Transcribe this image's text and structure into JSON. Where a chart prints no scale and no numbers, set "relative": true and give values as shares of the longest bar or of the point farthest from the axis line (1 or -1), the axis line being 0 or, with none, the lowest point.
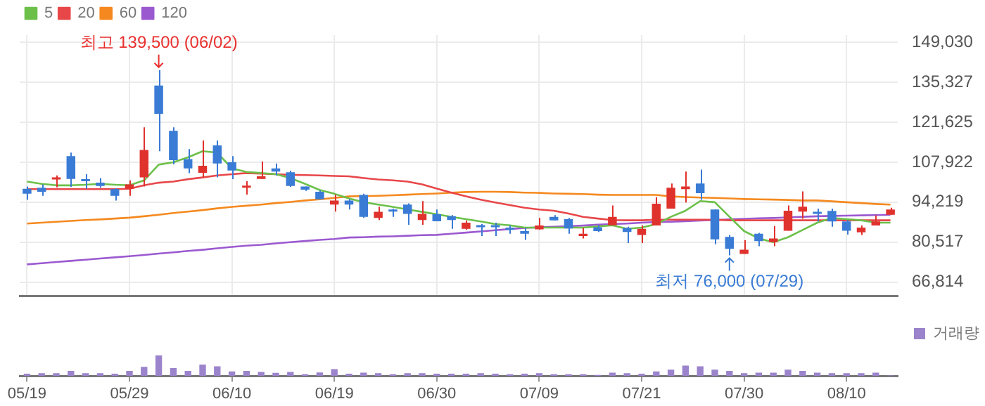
{
  "chart_data": [
    {
      "type": "candlestick",
      "categories": [
        null,
        null,
        null,
        null,
        null,
        null,
        null,
        null,
        null,
        null,
        null,
        null,
        null,
        null,
        null,
        null,
        null,
        null,
        null,
        null,
        null,
        null,
        null,
        null,
        null,
        null,
        null,
        null,
        null,
        null,
        null,
        null,
        null,
        null,
        null,
        null,
        null,
        null,
        null,
        null,
        null,
        null,
        null,
        null,
        null,
        null,
        null,
        null,
        null,
        null,
        null,
        null,
        null,
        null,
        null,
        null,
        null,
        null,
        null,
        null
      ],
      "ohlc": [
        [
          98800,
          99600,
          95000,
          97100
        ],
        [
          99200,
          100300,
          96400,
          97800
        ],
        [
          102000,
          103400,
          99300,
          102700
        ],
        [
          110000,
          111200,
          99500,
          102200
        ],
        [
          102100,
          103800,
          98800,
          101400
        ],
        [
          100900,
          102500,
          99200,
          99800
        ],
        [
          98700,
          99000,
          94800,
          96400
        ],
        [
          98800,
          101700,
          96400,
          100300
        ],
        [
          102700,
          119900,
          99600,
          112100
        ],
        [
          134200,
          139500,
          111700,
          124500
        ],
        [
          118700,
          119900,
          107200,
          108600
        ],
        [
          109000,
          112400,
          104200,
          105800
        ],
        [
          104300,
          115400,
          102700,
          106700
        ],
        [
          113700,
          115400,
          102700,
          107500
        ],
        [
          107900,
          110000,
          102100,
          105100
        ],
        [
          99200,
          101400,
          96800,
          99600
        ],
        [
          102200,
          108200,
          102200,
          103100
        ],
        [
          105800,
          107500,
          103400,
          104700
        ],
        [
          104500,
          105000,
          99500,
          99800
        ],
        [
          99600,
          99600,
          98100,
          98500
        ],
        [
          97800,
          98200,
          95200,
          95200
        ],
        [
          93400,
          96800,
          91000,
          94800
        ],
        [
          94800,
          95300,
          91700,
          93400
        ],
        [
          96700,
          97100,
          88800,
          89200
        ],
        [
          88800,
          92700,
          88100,
          90900
        ],
        [
          91400,
          92000,
          89200,
          91000
        ],
        [
          93400,
          93800,
          86500,
          90200
        ],
        [
          88100,
          94600,
          86500,
          90200
        ],
        [
          90100,
          91700,
          87700,
          87700
        ],
        [
          89400,
          89800,
          85100,
          88100
        ],
        [
          85100,
          87900,
          84800,
          87200
        ],
        [
          86300,
          86700,
          82600,
          85600
        ],
        [
          86300,
          87200,
          82600,
          85600
        ],
        [
          85400,
          86200,
          83400,
          84800
        ],
        [
          84300,
          85400,
          81300,
          83400
        ],
        [
          84900,
          88800,
          84800,
          86200
        ],
        [
          89200,
          89800,
          87900,
          88000
        ],
        [
          88400,
          88800,
          83400,
          85200
        ],
        [
          82600,
          85400,
          81800,
          83400
        ],
        [
          85600,
          86200,
          84000,
          84300
        ],
        [
          86300,
          93100,
          86300,
          89200
        ],
        [
          85400,
          85800,
          80200,
          84000
        ],
        [
          83000,
          86200,
          80200,
          85100
        ],
        [
          86200,
          95900,
          86200,
          93700
        ],
        [
          92000,
          100600,
          92000,
          99200
        ],
        [
          98700,
          104700,
          94100,
          99600
        ],
        [
          100600,
          105400,
          95000,
          97300
        ],
        [
          91700,
          91700,
          79800,
          81500
        ],
        [
          82300,
          83000,
          76000,
          78200
        ],
        [
          76500,
          81200,
          76500,
          77900
        ],
        [
          83400,
          83700,
          79100,
          80900
        ],
        [
          80500,
          86000,
          79100,
          81800
        ],
        [
          84400,
          93100,
          84400,
          91300
        ],
        [
          91000,
          97900,
          88500,
          92700
        ],
        [
          90600,
          92000,
          87600,
          90200
        ],
        [
          91200,
          92000,
          85800,
          87600
        ],
        [
          87600,
          88100,
          83100,
          84400
        ],
        [
          83900,
          86200,
          83000,
          85500
        ],
        [
          86200,
          89700,
          86200,
          87600
        ],
        [
          89900,
          92300,
          89900,
          91700
        ]
      ],
      "colors": [
        "#3a7bd5",
        "#3a7bd5",
        "#e0322d",
        "#3a7bd5",
        "#3a7bd5",
        "#3a7bd5",
        "#3a7bd5",
        "#e0322d",
        "#e0322d",
        "#3a7bd5",
        "#3a7bd5",
        "#3a7bd5",
        "#e0322d",
        "#3a7bd5",
        "#3a7bd5",
        "#e0322d",
        "#e0322d",
        "#3a7bd5",
        "#3a7bd5",
        "#3a7bd5",
        "#3a7bd5",
        "#e0322d",
        "#3a7bd5",
        "#3a7bd5",
        "#e0322d",
        "#3a7bd5",
        "#3a7bd5",
        "#e0322d",
        "#3a7bd5",
        "#3a7bd5",
        "#e0322d",
        "#3a7bd5",
        "#3a7bd5",
        "#3a7bd5",
        "#3a7bd5",
        "#e0322d",
        "#3a7bd5",
        "#3a7bd5",
        "#e0322d",
        "#3a7bd5",
        "#e0322d",
        "#3a7bd5",
        "#e0322d",
        "#e0322d",
        "#e0322d",
        "#e0322d",
        "#3a7bd5",
        "#3a7bd5",
        "#3a7bd5",
        "#e0322d",
        "#3a7bd5",
        "#e0322d",
        "#e0322d",
        "#e0322d",
        "#3a7bd5",
        "#3a7bd5",
        "#3a7bd5",
        "#e0322d",
        "#e0322d",
        "#e0322d"
      ],
      "series": [
        {
          "name": "5",
          "type": "line",
          "color": "#6cc04a",
          "values": [
            101300,
            100500,
            100000,
            100000,
            100200,
            100500,
            100200,
            100000,
            101700,
            107100,
            107900,
            109600,
            111700,
            111200,
            105800,
            104600,
            104200,
            103800,
            102500,
            100500,
            98400,
            97100,
            95500,
            94200,
            93400,
            92600,
            91700,
            90900,
            90100,
            89200,
            88400,
            87600,
            86700,
            86300,
            85500,
            85500,
            85500,
            85500,
            85500,
            85900,
            86300,
            85100,
            85500,
            86700,
            89200,
            91300,
            94600,
            94200,
            89200,
            84300,
            81800,
            80500,
            82200,
            84700,
            87200,
            88800,
            88400,
            88000,
            87200,
            87200
          ]
        },
        {
          "name": "20",
          "type": "line",
          "color": "#e8474a",
          "values": [
            98700,
            98700,
            98700,
            98700,
            98700,
            98700,
            98700,
            98800,
            100000,
            100900,
            101300,
            102100,
            102700,
            103400,
            103800,
            104200,
            104000,
            103800,
            103600,
            103500,
            103400,
            103200,
            103100,
            102500,
            102000,
            101700,
            101300,
            100300,
            98900,
            97500,
            96200,
            95100,
            94100,
            93200,
            92300,
            91700,
            91300,
            90300,
            89200,
            88600,
            88100,
            88000,
            88000,
            88200,
            88200,
            88200,
            88200,
            88200,
            88000,
            88000,
            88000,
            88000,
            88000,
            88000,
            88000,
            88000,
            88000,
            88000,
            88000,
            88000
          ]
        },
        {
          "name": "60",
          "type": "line",
          "color": "#f5891f",
          "values": [
            86900,
            87200,
            87500,
            87800,
            88100,
            88300,
            88600,
            88900,
            89400,
            89900,
            90500,
            91000,
            91500,
            92100,
            92600,
            93000,
            93400,
            93900,
            94300,
            94800,
            95200,
            95700,
            96200,
            96300,
            96400,
            96600,
            96800,
            97000,
            97200,
            97500,
            97700,
            97800,
            97800,
            97700,
            97500,
            97400,
            97200,
            97100,
            97000,
            96800,
            96700,
            96700,
            96700,
            96700,
            96200,
            96000,
            95800,
            95700,
            95500,
            95300,
            95200,
            95100,
            95000,
            94800,
            94800,
            94500,
            94200,
            93900,
            93600,
            93400
          ]
        },
        {
          "name": "120",
          "type": "line",
          "color": "#9b59d0",
          "values": [
            72900,
            73300,
            73700,
            74100,
            74500,
            74900,
            75300,
            75700,
            76100,
            76600,
            77000,
            77500,
            77900,
            78400,
            78900,
            79300,
            79600,
            80100,
            80500,
            80900,
            81300,
            81600,
            82100,
            82200,
            82400,
            82500,
            82700,
            82900,
            83000,
            83400,
            83800,
            84200,
            84600,
            85000,
            85400,
            85600,
            85800,
            86000,
            86200,
            86500,
            86700,
            86900,
            87200,
            87400,
            87500,
            87700,
            87900,
            88100,
            88300,
            88500,
            88700,
            88800,
            89000,
            89200,
            89400,
            89500,
            89600,
            89700,
            89800,
            89900
          ]
        }
      ],
      "ylim": [
        62000,
        151500
      ],
      "yticks": [
        {
          "value": 66814,
          "label": "66,814"
        },
        {
          "value": 80517,
          "label": "80,517"
        },
        {
          "value": 94219,
          "label": "94,219"
        },
        {
          "value": 107922,
          "label": "107,922"
        },
        {
          "value": 121625,
          "label": "121,625"
        },
        {
          "value": 135327,
          "label": "135,327"
        },
        {
          "value": 149030,
          "label": "149,030"
        }
      ],
      "grid": true,
      "legend": "top left",
      "tick_labels": "y",
      "annotations": [
        {
          "text": "최고 139,500 (06/02)",
          "y": 139500
        },
        {
          "text": "최저 76,000 (07/29)",
          "y": 76000
        }
      ]
    },
    {
      "type": "bar",
      "relative": true,
      "categories": [
        "05/19",
        null,
        null,
        null,
        null,
        null,
        null,
        "05/29",
        null,
        null,
        null,
        null,
        null,
        null,
        "06/10",
        null,
        null,
        null,
        null,
        null,
        null,
        "06/19",
        null,
        null,
        null,
        null,
        null,
        null,
        "06/30",
        null,
        null,
        null,
        null,
        null,
        null,
        "07/09",
        null,
        null,
        null,
        null,
        null,
        null,
        "07/21",
        null,
        null,
        null,
        null,
        null,
        null,
        "07/30",
        null,
        null,
        null,
        null,
        null,
        null,
        "08/10",
        null,
        null,
        null
      ],
      "series": [
        {
          "name": "거래량",
          "color": "#9b84cc",
          "values": [
            0.12,
            0.15,
            0.15,
            0.26,
            0.15,
            0.15,
            0.12,
            0.26,
            0.45,
            1,
            0.39,
            0.26,
            0.56,
            0.48,
            0.23,
            0.26,
            0.21,
            0.16,
            0.21,
            0.1,
            0.18,
            0.34,
            0.12,
            0.17,
            0.15,
            0.1,
            0.15,
            0.15,
            0.12,
            0.12,
            0.12,
            0.15,
            0.12,
            0.1,
            0.12,
            0.15,
            0.1,
            0.1,
            0.1,
            0.06,
            0.17,
            0.15,
            0.12,
            0.23,
            0.32,
            0.51,
            0.48,
            0.32,
            0.26,
            0.15,
            0.17,
            0.17,
            0.32,
            0.26,
            0.17,
            0.15,
            0.15,
            0.15,
            0.17,
            0.04
          ]
        }
      ],
      "legend": "top right",
      "tick_labels": "x"
    }
  ]
}
